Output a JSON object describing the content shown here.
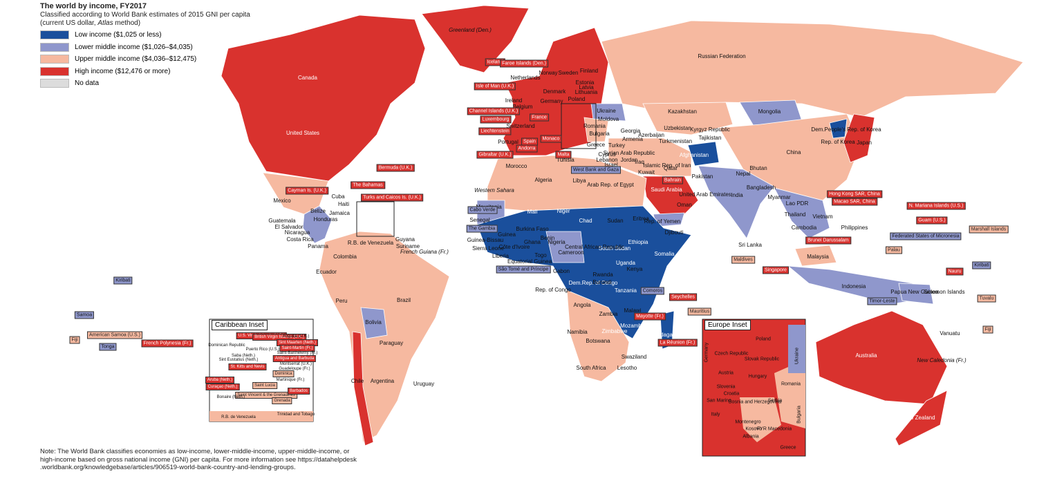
{
  "header": {
    "title": "The world by income, FY2017",
    "subtitle_line1": "Classified according to World Bank estimates of 2015 GNI per capita",
    "subtitle_line2_start": "(current US dollar,",
    "subtitle_line2_italic": "Atlas",
    "subtitle_line2_end": "method)"
  },
  "legend": {
    "items": [
      {
        "label": "Low income ($1,025 or less)",
        "color": "#1a4f9c"
      },
      {
        "label": "Lower middle income ($1,026–$4,035)",
        "color": "#8f97cc"
      },
      {
        "label": "Upper middle income ($4,036–$12,475)",
        "color": "#f6b9a0"
      },
      {
        "label": "High income ($12,476 or more)",
        "color": "#d9322e"
      },
      {
        "label": "No data",
        "color": "#dcdcdc"
      }
    ]
  },
  "map_labels": [
    "Canada",
    "United States",
    "Mexico",
    "Cuba",
    "Haiti",
    "Jamaica",
    "Belize",
    "Guatemala",
    "Honduras",
    "El Salvador",
    "Nicaragua",
    "Costa Rica",
    "Panama",
    "Colombia",
    "Ecuador",
    "Peru",
    "Brazil",
    "Bolivia",
    "Paraguay",
    "Chile",
    "Argentina",
    "Uruguay",
    "Guyana",
    "Suriname",
    "R.B. de Venezuela",
    "French Guiana (Fr.)",
    "Greenland (Den.)",
    "Russian Federation",
    "Kazakhstan",
    "Mongolia",
    "China",
    "India",
    "Pakistan",
    "Afghanistan",
    "Islamic Rep. of Iran",
    "Iraq",
    "Turkey",
    "Saudi Arabia",
    "Rep. of Yemen",
    "Oman",
    "United Arab Emirates",
    "Qatar",
    "Kuwait",
    "Uzbekistan",
    "Turkmenistan",
    "Kyrgyz Republic",
    "Tajikistan",
    "Georgia",
    "Armenia",
    "Azerbaijan",
    "Ukraine",
    "Moldova",
    "Romania",
    "Bulgaria",
    "Greece",
    "Norway",
    "Sweden",
    "Finland",
    "Estonia",
    "Latvia",
    "Lithuania",
    "Ireland",
    "Netherlands",
    "Belgium",
    "Denmark",
    "Germany",
    "Poland",
    "Switzerland",
    "Portugal",
    "Tunisia",
    "Cyprus",
    "Lebanon",
    "Israel",
    "Syrian Arab Republic",
    "Jordan",
    "Morocco",
    "Algeria",
    "Libya",
    "Arab Rep. of Egypt",
    "Western Sahara",
    "Mauritania",
    "Mali",
    "Niger",
    "Chad",
    "Sudan",
    "Eritrea",
    "Djibouti",
    "Ethiopia",
    "Somalia",
    "South Sudan",
    "Central African Republic",
    "Nigeria",
    "Cameroon",
    "Gabon",
    "Rep. of Congo",
    "Dem.Rep. of Congo",
    "Uganda",
    "Kenya",
    "Rwanda",
    "Burundi",
    "Tanzania",
    "Angola",
    "Zambia",
    "Malawi",
    "Mozambique",
    "Zimbabwe",
    "Namibia",
    "Botswana",
    "Madagascar",
    "South Africa",
    "Swaziland",
    "Lesotho",
    "Senegal",
    "Guinea-Bissau",
    "Guinea",
    "Sierra Leone",
    "Liberia",
    "Côte d'Ivoire",
    "Ghana",
    "Togo",
    "Burkina Faso",
    "Benin",
    "Equatorial Guinea",
    "Dem.People's Rep. of Korea",
    "Rep. of Korea",
    "Japan",
    "Nepal",
    "Bhutan",
    "Bangladesh",
    "Myanmar",
    "Lao PDR",
    "Thailand",
    "Vietnam",
    "Cambodia",
    "Philippines",
    "Sri Lanka",
    "Malaysia",
    "Indonesia",
    "Papua New Guinea",
    "Solomon Islands",
    "Vanuatu",
    "New Caledonia (Fr.)",
    "Australia",
    "New Zealand"
  ],
  "callouts": [
    "Iceland",
    "Faroe Islands (Den.)",
    "Isle of Man (U.K.)",
    "Channel Islands (U.K.)",
    "Luxembourg",
    "Liechtenstein",
    "France",
    "Spain",
    "Andorra",
    "Monaco",
    "Gibraltar (U.K.)",
    "Malta",
    "West Bank and Gaza",
    "Bahrain",
    "Bermuda (U.K.)",
    "The Bahamas",
    "Cayman Is. (U.K.)",
    "Turks and Caicos Is. (U.K.)",
    "Cabo Verde",
    "The Gambia",
    "São Tomé and Príncipe",
    "Comoros",
    "Seychelles",
    "Mayotte (Fr.)",
    "Mauritius",
    "La Réunion (Fr.)",
    "Maldives",
    "Singapore",
    "Brunei Darussalam",
    "Hong Kong SAR, China",
    "Macao SAR, China",
    "N. Mariana Islands (U.S.)",
    "Guam (U.S.)",
    "Federated States of Micronesia",
    "Palau",
    "Marshall Islands",
    "Kiribati",
    "Nauru",
    "Timor-Leste",
    "Tuvalu",
    "Fiji",
    "Kiribati",
    "Samoa",
    "American Samoa (U.S.)",
    "Fiji",
    "Tonga",
    "French Polynesia (Fr.)"
  ],
  "caribbean_inset": {
    "title": "Caribbean Inset",
    "labels": [
      "Dominican Republic",
      "Puerto Rico (U.S.)",
      "U.S. Virgin Islands (U.S.)",
      "British Virgin Islands (U.K.)",
      "Anguilla (U.K.)",
      "Sint Maarten (Neth.)",
      "Saint-Martin (Fr.)",
      "Saint-Barthélemy (Fr.)",
      "Saba (Neth.)",
      "Sint Eustatius (Neth.)",
      "Antigua and Barbuda",
      "Montserrat (U.K.)",
      "Guadeloupe (Fr.)",
      "St. Kitts and Nevis",
      "Dominica",
      "Martinique (Fr.)",
      "Aruba (Neth.)",
      "Curaçao (Neth.)",
      "Saint Lucia",
      "Saint Vincent & the Grenadines",
      "Barbados",
      "Bonaire (Neth.)",
      "Grenada",
      "Trinidad and Tobago",
      "R.B. de Venezuela"
    ]
  },
  "europe_inset": {
    "title": "Europe Inset",
    "labels": [
      "Poland",
      "Germany",
      "Czech Republic",
      "Slovak Republic",
      "Ukraine",
      "Austria",
      "Hungary",
      "Romania",
      "Slovenia",
      "Croatia",
      "San Marino",
      "Bosnia and Herzegovina",
      "Serbia",
      "Bulgaria",
      "Italy",
      "Montenegro",
      "Kosovo",
      "FYR Macedonia",
      "Albania",
      "Greece"
    ]
  },
  "note": {
    "lines": [
      "Note: The World Bank classifies economies as low-income, lower-middle-income, upper-middle-income, or",
      "high-income based on gross national income (GNI) per capita. For more information see https://datahelpdesk",
      ".worldbank.org/knowledgebase/articles/906519-world-bank-country-and-lending-groups."
    ]
  }
}
